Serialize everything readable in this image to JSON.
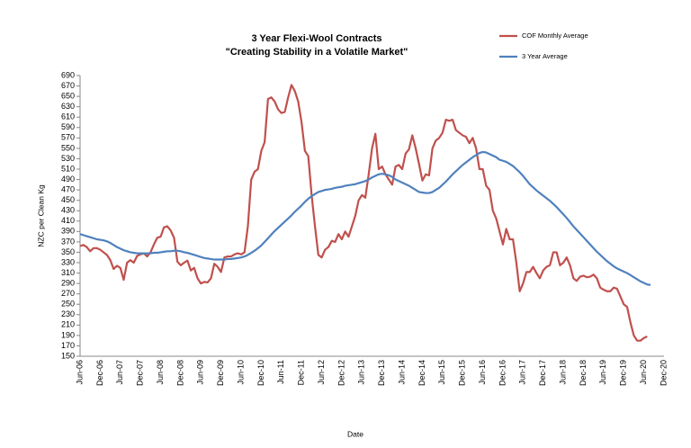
{
  "chart_data": {
    "type": "line",
    "title": "3 Year Flexi-Wool Contracts",
    "subtitle": "\"Creating Stability in a Volatile Market\"",
    "x_label": "Date",
    "y_label": "NZC per Clean Kg",
    "ylim": [
      150,
      690
    ],
    "yticks": [
      150,
      170,
      190,
      210,
      230,
      250,
      270,
      290,
      310,
      330,
      350,
      370,
      390,
      410,
      430,
      450,
      470,
      490,
      510,
      530,
      550,
      570,
      590,
      610,
      630,
      650,
      670,
      690
    ],
    "grid": false,
    "legend": "top-right",
    "categories": [
      "Jun-06",
      null,
      null,
      null,
      null,
      null,
      "Dec-06",
      null,
      null,
      null,
      null,
      null,
      "Jun-07",
      null,
      null,
      null,
      null,
      null,
      "Dec-07",
      null,
      null,
      null,
      null,
      null,
      "Jun-08",
      null,
      null,
      null,
      null,
      null,
      "Dec-08",
      null,
      null,
      null,
      null,
      null,
      "Jun-09",
      null,
      null,
      null,
      null,
      null,
      "Dec-09",
      null,
      null,
      null,
      null,
      null,
      "Jun-10",
      null,
      null,
      null,
      null,
      null,
      "Dec-10",
      null,
      null,
      null,
      null,
      null,
      "Jun-11",
      null,
      null,
      null,
      null,
      null,
      "Dec-11",
      null,
      null,
      null,
      null,
      null,
      "Jun-12",
      null,
      null,
      null,
      null,
      null,
      "Dec-12",
      null,
      null,
      null,
      null,
      null,
      "Jun-13",
      null,
      null,
      null,
      null,
      null,
      "Dec-13",
      null,
      null,
      null,
      null,
      null,
      "Jun-14",
      null,
      null,
      null,
      null,
      null,
      "Dec-14",
      null,
      null,
      null,
      null,
      null,
      "Jun-15",
      null,
      null,
      null,
      null,
      null,
      "Dec-15",
      null,
      null,
      null,
      null,
      null,
      "Jun-16",
      null,
      null,
      null,
      null,
      null,
      "Dec-16",
      null,
      null,
      null,
      null,
      null,
      "Jun-17",
      null,
      null,
      null,
      null,
      null,
      "Dec-17",
      null,
      null,
      null,
      null,
      null,
      "Jun-18",
      null,
      null,
      null,
      null,
      null,
      "Dec-18",
      null,
      null,
      null,
      null,
      null,
      "Jun-19",
      null,
      null,
      null,
      null,
      null,
      "Dec-19",
      null,
      null,
      null,
      null,
      null,
      "Jun-20",
      null,
      null,
      null,
      null,
      null,
      "Dec-20"
    ],
    "series": [
      {
        "name": "COF Monthly Average",
        "color": "#c0504d",
        "values": [
          362,
          364,
          360,
          352,
          358,
          358,
          355,
          350,
          345,
          335,
          318,
          324,
          320,
          297,
          330,
          335,
          330,
          343,
          346,
          348,
          342,
          350,
          365,
          378,
          380,
          398,
          400,
          392,
          378,
          332,
          325,
          330,
          334,
          315,
          320,
          300,
          290,
          293,
          292,
          300,
          328,
          322,
          312,
          340,
          342,
          342,
          346,
          348,
          346,
          350,
          400,
          490,
          505,
          510,
          545,
          562,
          645,
          648,
          640,
          625,
          618,
          620,
          648,
          672,
          660,
          640,
          600,
          545,
          535,
          460,
          400,
          345,
          340,
          355,
          360,
          372,
          370,
          385,
          375,
          390,
          380,
          400,
          420,
          450,
          460,
          455,
          500,
          550,
          578,
          510,
          515,
          500,
          490,
          480,
          515,
          518,
          510,
          540,
          548,
          575,
          550,
          520,
          488,
          500,
          498,
          550,
          565,
          570,
          580,
          605,
          603,
          605,
          585,
          580,
          575,
          572,
          560,
          570,
          550,
          510,
          510,
          478,
          470,
          430,
          415,
          390,
          365,
          395,
          375,
          375,
          330,
          275,
          290,
          312,
          312,
          322,
          310,
          300,
          315,
          322,
          325,
          350,
          350,
          325,
          330,
          340,
          325,
          300,
          295,
          303,
          305,
          302,
          303,
          307,
          300,
          282,
          278,
          275,
          275,
          282,
          280,
          265,
          250,
          245,
          215,
          190,
          180,
          180,
          185,
          188,
          null,
          null,
          null,
          null,
          null
        ]
      },
      {
        "name": "3 Year Average",
        "color": "#4f81bd",
        "values": [
          385,
          383,
          381,
          379,
          377,
          375,
          374,
          373,
          371,
          368,
          364,
          360,
          357,
          354,
          352,
          350,
          349,
          348,
          348,
          348,
          348,
          348,
          349,
          349,
          350,
          351,
          352,
          352,
          353,
          353,
          352,
          350,
          349,
          347,
          345,
          343,
          341,
          339,
          338,
          337,
          336,
          336,
          336,
          336,
          337,
          337,
          338,
          339,
          340,
          342,
          345,
          349,
          353,
          358,
          363,
          370,
          377,
          384,
          391,
          397,
          403,
          409,
          415,
          421,
          428,
          434,
          440,
          447,
          453,
          458,
          462,
          466,
          468,
          470,
          471,
          472,
          474,
          475,
          476,
          478,
          479,
          480,
          481,
          483,
          485,
          487,
          490,
          494,
          497,
          500,
          501,
          500,
          498,
          495,
          490,
          487,
          484,
          481,
          478,
          474,
          470,
          466,
          465,
          464,
          464,
          466,
          470,
          474,
          480,
          486,
          493,
          500,
          506,
          512,
          518,
          523,
          528,
          533,
          537,
          541,
          543,
          542,
          539,
          536,
          533,
          528,
          526,
          524,
          520,
          516,
          510,
          504,
          497,
          489,
          481,
          475,
          469,
          464,
          459,
          454,
          449,
          443,
          437,
          430,
          423,
          416,
          408,
          400,
          393,
          386,
          379,
          372,
          365,
          358,
          351,
          345,
          339,
          333,
          328,
          323,
          319,
          316,
          313,
          310,
          306,
          302,
          298,
          294,
          291,
          288,
          287,
          null,
          null,
          null,
          null
        ]
      }
    ]
  }
}
